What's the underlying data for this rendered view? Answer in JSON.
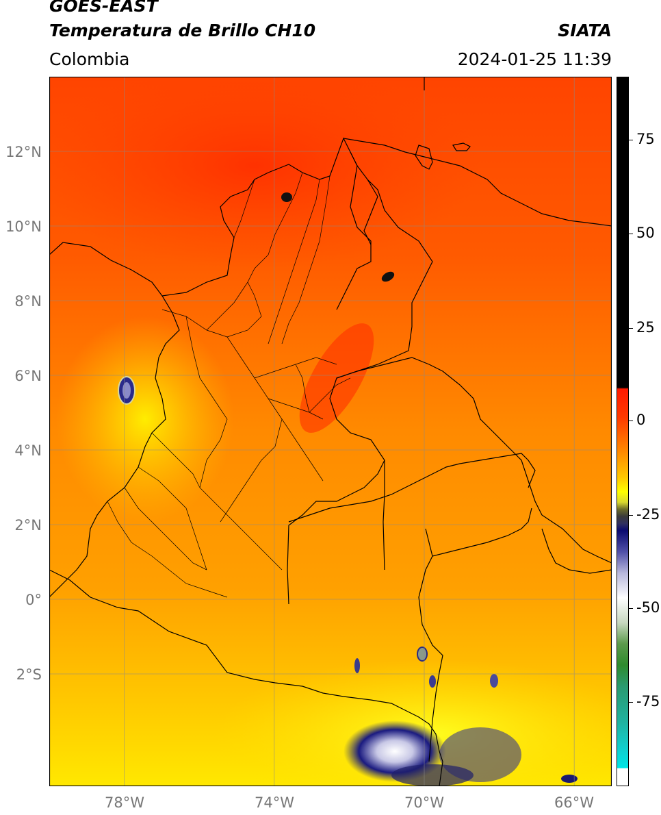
{
  "header": {
    "satellite": "GOES-EAST",
    "product": "Temperatura de Brillo CH10",
    "region": "Colombia",
    "organization": "SIATA",
    "datetime": "2024-01-25 11:39"
  },
  "map": {
    "lon_range": [
      -80,
      -65
    ],
    "lat_range": [
      -5,
      14
    ],
    "lat_ticks": [
      {
        "value": 12,
        "label": "12°N"
      },
      {
        "value": 10,
        "label": "10°N"
      },
      {
        "value": 8,
        "label": "8°N"
      },
      {
        "value": 6,
        "label": "6°N"
      },
      {
        "value": 4,
        "label": "4°N"
      },
      {
        "value": 2,
        "label": "2°N"
      },
      {
        "value": 0,
        "label": "0°"
      },
      {
        "value": -2,
        "label": "2°S"
      }
    ],
    "lon_ticks": [
      {
        "value": -78,
        "label": "78°W"
      },
      {
        "value": -74,
        "label": "74°W"
      },
      {
        "value": -70,
        "label": "70°W"
      },
      {
        "value": -66,
        "label": "66°W"
      }
    ],
    "gridlines": true
  },
  "colorbar": {
    "range": [
      -97,
      90
    ],
    "ticks": [
      {
        "value": 75,
        "label": "75"
      },
      {
        "value": 50,
        "label": "50"
      },
      {
        "value": 25,
        "label": "25"
      },
      {
        "value": 0,
        "label": "0"
      },
      {
        "value": -25,
        "label": "-25"
      },
      {
        "value": -50,
        "label": "-50"
      },
      {
        "value": -75,
        "label": "-75"
      }
    ],
    "colors": {
      "black": "#000000",
      "red": "#ff1a00",
      "orange": "#ff8c00",
      "yellow": "#ffff00",
      "olive": "#6b6b2a",
      "navy": "#0a0a70",
      "white": "#ffffff",
      "green": "#2e8b2e",
      "teal": "#20b2a0",
      "cyan": "#00e5e5"
    }
  }
}
